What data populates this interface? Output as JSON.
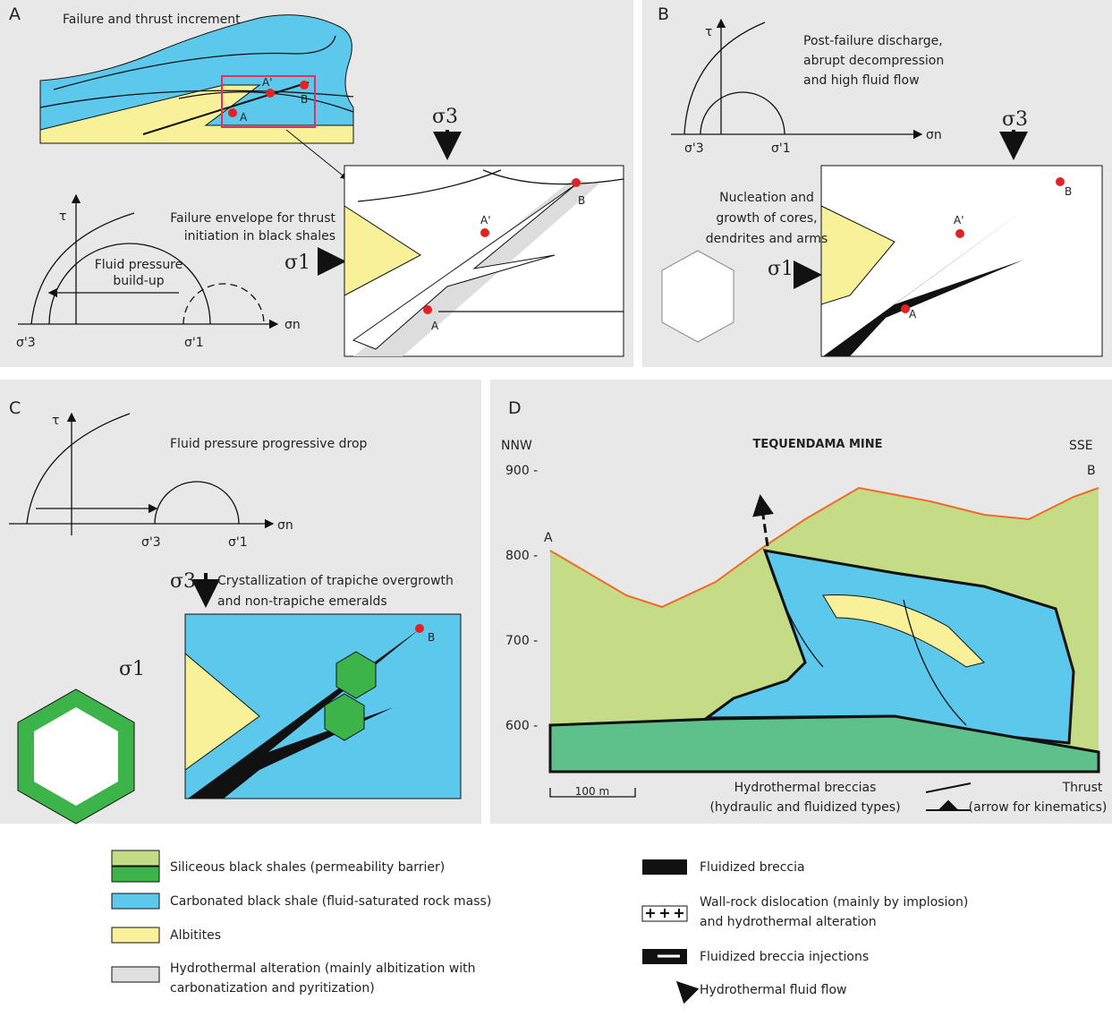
{
  "panel_a": {
    "label": "A",
    "title": "Failure and thrust increment",
    "map_points": [
      "A'",
      "B",
      "A"
    ],
    "sigma3": "σ3",
    "sigma1": "σ1",
    "envelope_note": [
      "Failure envelope for thrust",
      "initiation in black shales"
    ],
    "mohr": {
      "tau": "τ",
      "note": [
        "Fluid pressure",
        "build-up"
      ],
      "s3": "σ'3",
      "s1": "σ'1",
      "sn": "σn"
    },
    "inset_points": [
      "A'",
      "B",
      "A"
    ]
  },
  "panel_b": {
    "label": "B",
    "mohr": {
      "tau": "τ",
      "note": [
        "Post-failure discharge,",
        "abrupt decompression",
        "and high fluid flow"
      ],
      "sn": "σn",
      "s3": "σ'3",
      "s1": "σ'1"
    },
    "sigma3": "σ3",
    "sigma1": "σ1",
    "nucleation_note": [
      "Nucleation and",
      "growth of cores,",
      "dendrites and arms"
    ],
    "inset_points": [
      "A'",
      "B",
      "A"
    ]
  },
  "panel_c": {
    "label": "C",
    "mohr": {
      "tau": "τ",
      "note": "Fluid pressure progressive drop",
      "sn": "σn",
      "s3": "σ'3",
      "s1": "σ'1"
    },
    "sigma3": "σ3",
    "sigma1": "σ1",
    "crystallization_note": [
      "Crystallization of trapiche overgrowth",
      "and non-trapiche emeralds"
    ],
    "inset_points": [
      "B"
    ]
  },
  "panel_d": {
    "label": "D",
    "left_end": "NNW",
    "title": "TEQUENDAMA MINE",
    "right_end": "SSE",
    "section_ends": [
      "A",
      "B"
    ],
    "elevations": [
      "900 -",
      "800 -",
      "700 -",
      "600 -"
    ],
    "scale": "100 m",
    "breccia_key": [
      "Hydrothermal breccias",
      "(hydraulic and fluidized types)"
    ],
    "thrust_key": [
      "Thrust",
      "(arrow for kinematics)"
    ]
  },
  "legend": {
    "left": [
      [
        "Siliceous black shales (permeability barrier)"
      ],
      [
        "Carbonated black shale (fluid-saturated rock mass)"
      ],
      [
        "Albitites"
      ],
      [
        "Hydrothermal alteration (mainly albitization with",
        "carbonatization and pyritization)"
      ]
    ],
    "right": [
      [
        "Fluidized breccia"
      ],
      [
        "Wall-rock dislocation (mainly by implosion)",
        "and hydrothermal alteration"
      ],
      [
        "Fluidized breccia injections"
      ],
      [
        "Hydrothermal fluid flow"
      ]
    ]
  }
}
